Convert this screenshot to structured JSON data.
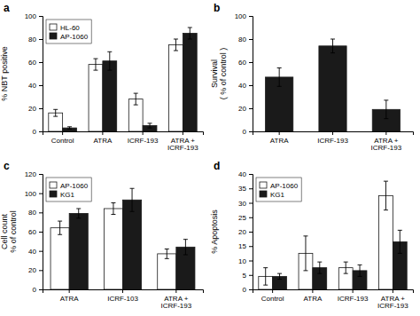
{
  "chart_data": [
    {
      "type": "bar",
      "title": "a",
      "categories": [
        "Control",
        "ATRA",
        "ICRF-193",
        "ATRA +\nICRF-193"
      ],
      "series": [
        {
          "name": "HL-60",
          "color": "#ffffff",
          "values": [
            16,
            58,
            28,
            75
          ],
          "errors": [
            3,
            5,
            5,
            5
          ]
        },
        {
          "name": "AP-1060",
          "color": "#1a1a1a",
          "values": [
            3,
            61,
            5,
            85
          ],
          "errors": [
            1,
            8,
            2,
            5
          ]
        }
      ],
      "ylabel": "% NBT positive",
      "ylim": [
        0,
        100
      ],
      "yticks": [
        0,
        20,
        40,
        60,
        80,
        100
      ],
      "legend": "upper left",
      "grid": false
    },
    {
      "type": "bar",
      "title": "b",
      "categories": [
        "ATRA",
        "ICRF-193",
        "ATRA +\nICRF-193"
      ],
      "values": [
        47,
        74,
        19
      ],
      "errors": [
        8,
        6,
        8
      ],
      "color": "#1a1a1a",
      "ylabel": "Survival\n( % of control )",
      "ylim": [
        0,
        100
      ],
      "yticks": [
        0,
        20,
        40,
        60,
        80,
        100
      ],
      "grid": false
    },
    {
      "type": "bar",
      "title": "c",
      "categories": [
        "ATRA",
        "ICRF-103",
        "ATRA +\nICRF-193"
      ],
      "series": [
        {
          "name": "AP-1060",
          "color": "#ffffff",
          "values": [
            64,
            84,
            37
          ],
          "errors": [
            7,
            6,
            5
          ]
        },
        {
          "name": "KG1",
          "color": "#1a1a1a",
          "values": [
            79,
            93,
            44
          ],
          "errors": [
            5,
            12,
            8
          ]
        }
      ],
      "ylabel": "Cell count\n% of control",
      "ylim": [
        0,
        120
      ],
      "yticks": [
        0,
        20,
        40,
        60,
        80,
        100,
        120
      ],
      "legend": "upper left",
      "grid": false
    },
    {
      "type": "bar",
      "title": "d",
      "categories": [
        "Control",
        "ATRA",
        "ICRF-193",
        "ATRA +\nICRF-193"
      ],
      "series": [
        {
          "name": "AP-1060",
          "color": "#ffffff",
          "values": [
            4.5,
            12.5,
            7.5,
            32.5
          ],
          "errors": [
            3,
            6,
            2,
            5
          ]
        },
        {
          "name": "KG1",
          "color": "#1a1a1a",
          "values": [
            4.5,
            7.5,
            6.5,
            16.5
          ],
          "errors": [
            1,
            2,
            2,
            4
          ]
        }
      ],
      "ylabel": "% Apoptosis",
      "ylim": [
        0,
        40
      ],
      "yticks": [
        0,
        5,
        10,
        15,
        20,
        25,
        30,
        35,
        40
      ],
      "legend": "upper left",
      "grid": false
    }
  ]
}
